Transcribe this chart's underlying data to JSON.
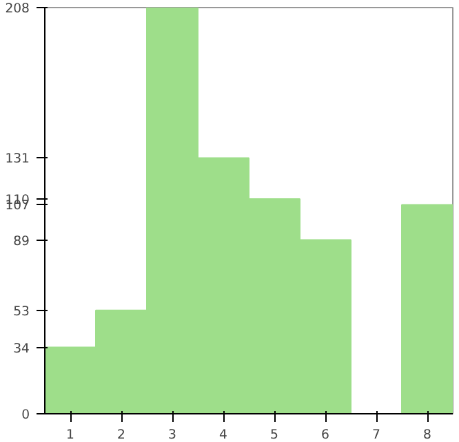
{
  "chart_data": {
    "type": "bar",
    "categories": [
      "1",
      "2",
      "3",
      "4",
      "5",
      "6",
      "7",
      "8"
    ],
    "values": [
      34,
      53,
      208,
      131,
      110,
      89,
      0,
      107
    ],
    "color": "#9ede8a",
    "ylim": [
      0,
      208
    ],
    "yticks": [
      0,
      34,
      53,
      89,
      107,
      110,
      131,
      208
    ],
    "grid": false
  }
}
